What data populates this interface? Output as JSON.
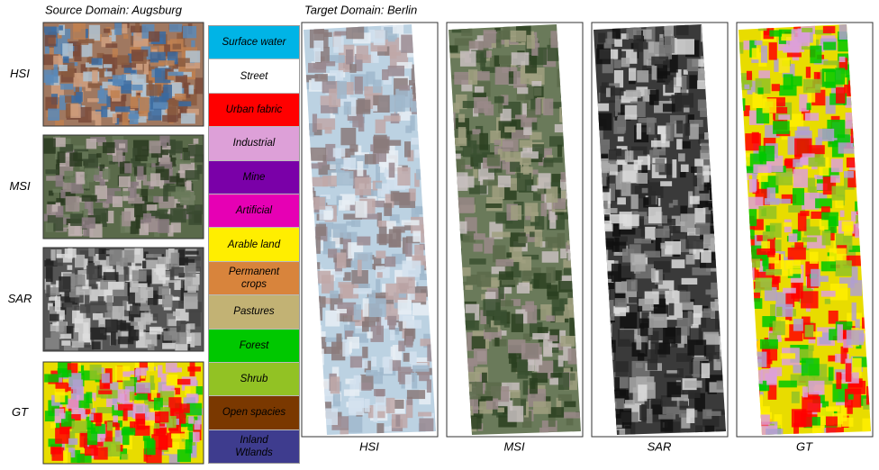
{
  "source": {
    "title": "Source Domain: Augsburg",
    "rows": [
      "HSI",
      "MSI",
      "SAR",
      "GT"
    ]
  },
  "legend": [
    {
      "label": "Surface water",
      "color": "#00b4e6"
    },
    {
      "label": "Street",
      "color": "#ffffff"
    },
    {
      "label": "Urban fabric",
      "color": "#ff0000"
    },
    {
      "label": "Industrial",
      "color": "#dda0d8"
    },
    {
      "label": "Mine",
      "color": "#7a00a8"
    },
    {
      "label": "Artificial",
      "color": "#e600b4"
    },
    {
      "label": "Arable land",
      "color": "#ffee00"
    },
    {
      "label": "Permanent crops",
      "color": "#d8843c"
    },
    {
      "label": "Pastures",
      "color": "#c2b274"
    },
    {
      "label": "Forest",
      "color": "#00c800"
    },
    {
      "label": "Shrub",
      "color": "#92c224"
    },
    {
      "label": "Open spacies",
      "color": "#7a3800"
    },
    {
      "label": "Inland Wtlands",
      "color": "#3e3c8e"
    }
  ],
  "target": {
    "title": "Target Domain: Berlin",
    "labels": [
      "HSI",
      "MSI",
      "SAR",
      "GT"
    ]
  }
}
